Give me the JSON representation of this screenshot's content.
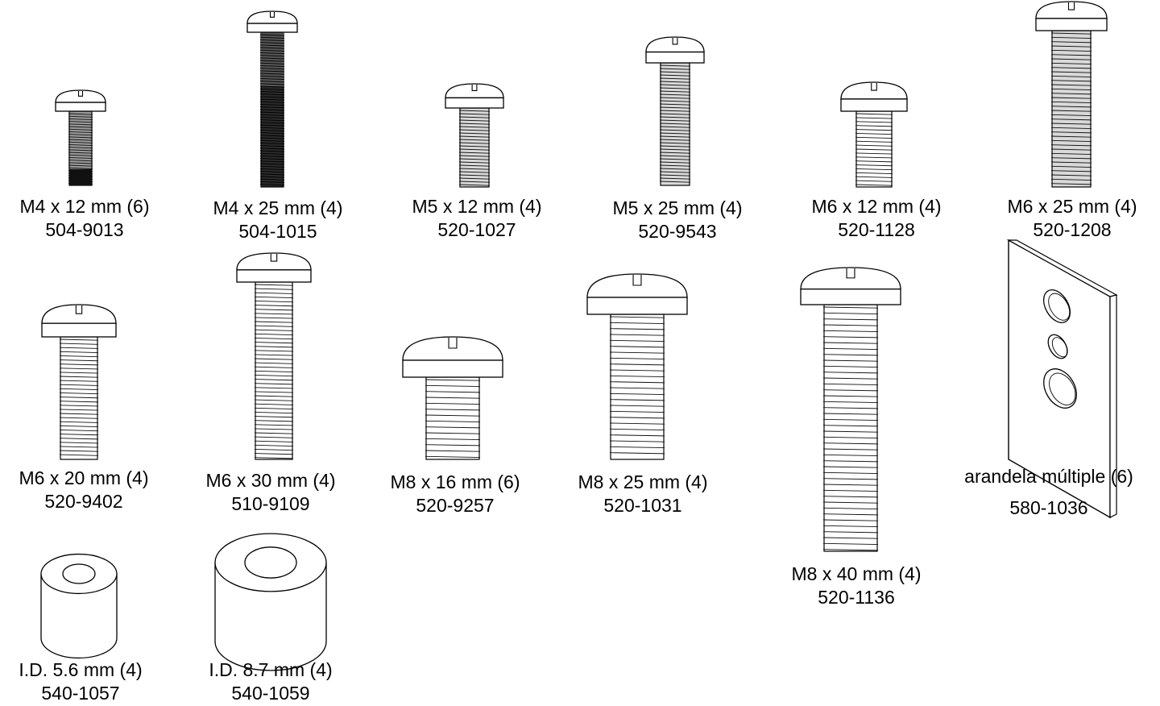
{
  "parts": [
    {
      "kind": "screw",
      "size": "M4 x 12 mm (6)",
      "code": "504-9013",
      "thread": "dark-bottom"
    },
    {
      "kind": "screw",
      "size": "M4 x 25 mm (4)",
      "code": "504-1015",
      "thread": "dark"
    },
    {
      "kind": "screw",
      "size": "M5 x 12 mm (4)",
      "code": "520-1027",
      "thread": "medium"
    },
    {
      "kind": "screw",
      "size": "M5 x 25 mm (4)",
      "code": "520-9543",
      "thread": "medium"
    },
    {
      "kind": "screw",
      "size": "M6 x 12 mm (4)",
      "code": "520-1128",
      "thread": "light"
    },
    {
      "kind": "screw",
      "size": "M6 x 25 mm (4)",
      "code": "520-1208",
      "thread": "medium"
    },
    {
      "kind": "screw",
      "size": "M6 x 20 mm (4)",
      "code": "520-9402",
      "thread": "light"
    },
    {
      "kind": "screw",
      "size": "M6 x 30 mm (4)",
      "code": "510-9109",
      "thread": "light"
    },
    {
      "kind": "screw",
      "size": "M8 x 16 mm (6)",
      "code": "520-9257",
      "thread": "light"
    },
    {
      "kind": "screw",
      "size": "M8 x 25 mm (4)",
      "code": "520-1031",
      "thread": "light"
    },
    {
      "kind": "screw",
      "size": "M8 x 40 mm (4)",
      "code": "520-1136",
      "thread": "light"
    },
    {
      "kind": "plate",
      "size": "arandela múltiple (6)",
      "code": "580-1036"
    },
    {
      "kind": "spacer",
      "size": "I.D. 5.6 mm (4)",
      "code": "540-1057"
    },
    {
      "kind": "spacer",
      "size": "I.D. 8.7 mm (4)",
      "code": "540-1059"
    }
  ]
}
